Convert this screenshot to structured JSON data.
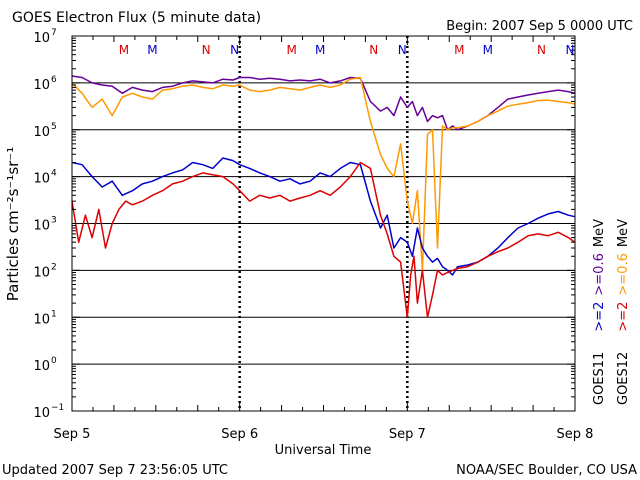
{
  "chart_data": {
    "type": "line",
    "title": "GOES Electron Flux (5 minute data)",
    "begin_label": "Begin: 2007 Sep 5 0000 UTC",
    "xlabel": "Universal Time",
    "ylabel": "Particles cm⁻²s⁻¹sr⁻¹",
    "x_unit": "days since 2007 Sep 5 0000 UTC",
    "xlim": [
      0,
      3
    ],
    "ylim": [
      0.1,
      10000000
    ],
    "y_scale": "log",
    "grid": true,
    "x_ticks": [
      {
        "x": 0,
        "label": "Sep 5"
      },
      {
        "x": 1,
        "label": "Sep 6"
      },
      {
        "x": 2,
        "label": "Sep 7"
      },
      {
        "x": 3,
        "label": "Sep 8"
      }
    ],
    "y_tick_exponents": [
      -1,
      0,
      1,
      2,
      3,
      4,
      5,
      6,
      7
    ],
    "threshold_level": 1000,
    "mn_markers": [
      {
        "x": 0.31,
        "label": "M",
        "color": "#dd0000"
      },
      {
        "x": 0.48,
        "label": "M",
        "color": "#0000cc"
      },
      {
        "x": 0.8,
        "label": "N",
        "color": "#dd0000"
      },
      {
        "x": 0.97,
        "label": "N",
        "color": "#0000cc"
      },
      {
        "x": 1.31,
        "label": "M",
        "color": "#dd0000"
      },
      {
        "x": 1.48,
        "label": "M",
        "color": "#0000cc"
      },
      {
        "x": 1.8,
        "label": "N",
        "color": "#dd0000"
      },
      {
        "x": 1.97,
        "label": "N",
        "color": "#0000cc"
      },
      {
        "x": 2.31,
        "label": "M",
        "color": "#dd0000"
      },
      {
        "x": 2.48,
        "label": "M",
        "color": "#0000cc"
      },
      {
        "x": 2.8,
        "label": "N",
        "color": "#dd0000"
      },
      {
        "x": 2.97,
        "label": "N",
        "color": "#0000cc"
      }
    ],
    "legend": {
      "rows": [
        {
          "sat": "GOES11",
          "items": [
            {
              "text": ">=2",
              "color": "#0000cc"
            },
            {
              "text": ">=0.6",
              "color": "#660099"
            },
            {
              "text": "MeV",
              "color": "#000000"
            }
          ]
        },
        {
          "sat": "GOES12",
          "items": [
            {
              "text": ">=2",
              "color": "#dd0000"
            },
            {
              "text": ">=0.6",
              "color": "#ff9900"
            },
            {
              "text": "MeV",
              "color": "#000000"
            }
          ]
        }
      ]
    },
    "series": [
      {
        "name": "GOES11 >=0.6 MeV",
        "color": "#660099",
        "x": [
          0,
          0.06,
          0.12,
          0.18,
          0.24,
          0.3,
          0.36,
          0.42,
          0.48,
          0.54,
          0.6,
          0.66,
          0.72,
          0.78,
          0.84,
          0.9,
          0.96,
          1.0,
          1.06,
          1.12,
          1.18,
          1.24,
          1.3,
          1.36,
          1.42,
          1.48,
          1.54,
          1.6,
          1.66,
          1.72,
          1.78,
          1.84,
          1.88,
          1.92,
          1.96,
          2.0,
          2.03,
          2.06,
          2.09,
          2.12,
          2.15,
          2.18,
          2.21,
          2.24,
          2.27,
          2.3,
          2.36,
          2.42,
          2.48,
          2.54,
          2.6,
          2.66,
          2.72,
          2.78,
          2.84,
          2.9,
          2.96,
          3.0
        ],
        "y": [
          1400000,
          1300000,
          1000000,
          900000,
          850000,
          600000,
          800000,
          700000,
          650000,
          800000,
          850000,
          1000000,
          1100000,
          1050000,
          1000000,
          1200000,
          1150000,
          1300000,
          1300000,
          1200000,
          1250000,
          1200000,
          1100000,
          1150000,
          1100000,
          1200000,
          1000000,
          1100000,
          1300000,
          1250000,
          400000,
          250000,
          300000,
          200000,
          500000,
          300000,
          400000,
          200000,
          300000,
          150000,
          200000,
          180000,
          200000,
          100000,
          120000,
          100000,
          120000,
          150000,
          200000,
          300000,
          450000,
          500000,
          550000,
          600000,
          650000,
          700000,
          650000,
          600000
        ]
      },
      {
        "name": "GOES12 >=0.6 MeV",
        "color": "#ff9900",
        "x": [
          0,
          0.06,
          0.12,
          0.18,
          0.24,
          0.3,
          0.36,
          0.42,
          0.48,
          0.54,
          0.6,
          0.66,
          0.72,
          0.78,
          0.84,
          0.9,
          0.96,
          1.0,
          1.06,
          1.12,
          1.18,
          1.24,
          1.3,
          1.36,
          1.42,
          1.48,
          1.54,
          1.6,
          1.66,
          1.72,
          1.78,
          1.84,
          1.88,
          1.92,
          1.96,
          2.0,
          2.03,
          2.06,
          2.09,
          2.12,
          2.15,
          2.18,
          2.21,
          2.24,
          2.27,
          2.3,
          2.36,
          2.42,
          2.48,
          2.54,
          2.6,
          2.66,
          2.72,
          2.78,
          2.84,
          2.9,
          2.96,
          3.0
        ],
        "y": [
          1000000,
          600000,
          300000,
          450000,
          200000,
          500000,
          600000,
          500000,
          450000,
          700000,
          750000,
          850000,
          900000,
          800000,
          750000,
          900000,
          850000,
          900000,
          700000,
          650000,
          700000,
          800000,
          750000,
          700000,
          800000,
          900000,
          800000,
          900000,
          1200000,
          1300000,
          150000,
          30000,
          15000,
          10000,
          50000,
          3000,
          1000,
          5000,
          100,
          80000,
          100000,
          300,
          120000,
          100000,
          110000,
          110000,
          120000,
          150000,
          200000,
          250000,
          320000,
          350000,
          380000,
          420000,
          430000,
          400000,
          380000,
          350000
        ]
      },
      {
        "name": "GOES11 >=2 MeV",
        "color": "#0000cc",
        "x": [
          0,
          0.06,
          0.12,
          0.18,
          0.24,
          0.3,
          0.36,
          0.42,
          0.48,
          0.54,
          0.6,
          0.66,
          0.72,
          0.78,
          0.84,
          0.9,
          0.96,
          1.0,
          1.06,
          1.12,
          1.18,
          1.24,
          1.3,
          1.36,
          1.42,
          1.48,
          1.54,
          1.6,
          1.66,
          1.72,
          1.78,
          1.84,
          1.88,
          1.92,
          1.96,
          2.0,
          2.03,
          2.06,
          2.09,
          2.12,
          2.15,
          2.18,
          2.21,
          2.24,
          2.27,
          2.3,
          2.36,
          2.42,
          2.48,
          2.54,
          2.6,
          2.66,
          2.72,
          2.78,
          2.84,
          2.9,
          2.96,
          3.0
        ],
        "y": [
          20000,
          18000,
          10000,
          6000,
          8000,
          4000,
          5000,
          7000,
          8000,
          10000,
          12000,
          14000,
          20000,
          18000,
          15000,
          25000,
          22000,
          18000,
          15000,
          12000,
          10000,
          8000,
          9000,
          7000,
          8000,
          12000,
          10000,
          15000,
          20000,
          18000,
          3000,
          800,
          1500,
          300,
          500,
          400,
          200,
          800,
          300,
          200,
          150,
          180,
          120,
          100,
          80,
          120,
          130,
          150,
          200,
          300,
          500,
          800,
          1000,
          1300,
          1600,
          1800,
          1500,
          1400
        ]
      },
      {
        "name": "GOES12 >=2 MeV",
        "color": "#dd0000",
        "x": [
          0,
          0.04,
          0.08,
          0.12,
          0.16,
          0.2,
          0.24,
          0.28,
          0.32,
          0.36,
          0.42,
          0.48,
          0.54,
          0.6,
          0.66,
          0.72,
          0.78,
          0.84,
          0.9,
          0.96,
          1.0,
          1.06,
          1.12,
          1.18,
          1.24,
          1.3,
          1.36,
          1.42,
          1.48,
          1.54,
          1.6,
          1.66,
          1.72,
          1.78,
          1.84,
          1.88,
          1.92,
          1.96,
          2.0,
          2.02,
          2.04,
          2.06,
          2.09,
          2.12,
          2.15,
          2.18,
          2.21,
          2.24,
          2.27,
          2.3,
          2.36,
          2.42,
          2.48,
          2.54,
          2.6,
          2.66,
          2.72,
          2.78,
          2.84,
          2.9,
          2.96,
          3.0
        ],
        "y": [
          3000,
          400,
          1500,
          500,
          2000,
          300,
          1000,
          2000,
          3000,
          2500,
          3000,
          4000,
          5000,
          7000,
          8000,
          10000,
          12000,
          11000,
          10000,
          7000,
          5000,
          3000,
          4000,
          3500,
          4000,
          3000,
          3500,
          4000,
          5000,
          4000,
          6000,
          10000,
          20000,
          15000,
          1500,
          600,
          200,
          150,
          10,
          80,
          200,
          20,
          100,
          10,
          30,
          100,
          80,
          90,
          100,
          110,
          120,
          150,
          200,
          250,
          300,
          400,
          550,
          600,
          550,
          650,
          500,
          400
        ]
      }
    ]
  },
  "footer": {
    "updated": "Updated 2007 Sep  7 23:56:05 UTC",
    "credit": "NOAA/SEC Boulder, CO USA"
  }
}
